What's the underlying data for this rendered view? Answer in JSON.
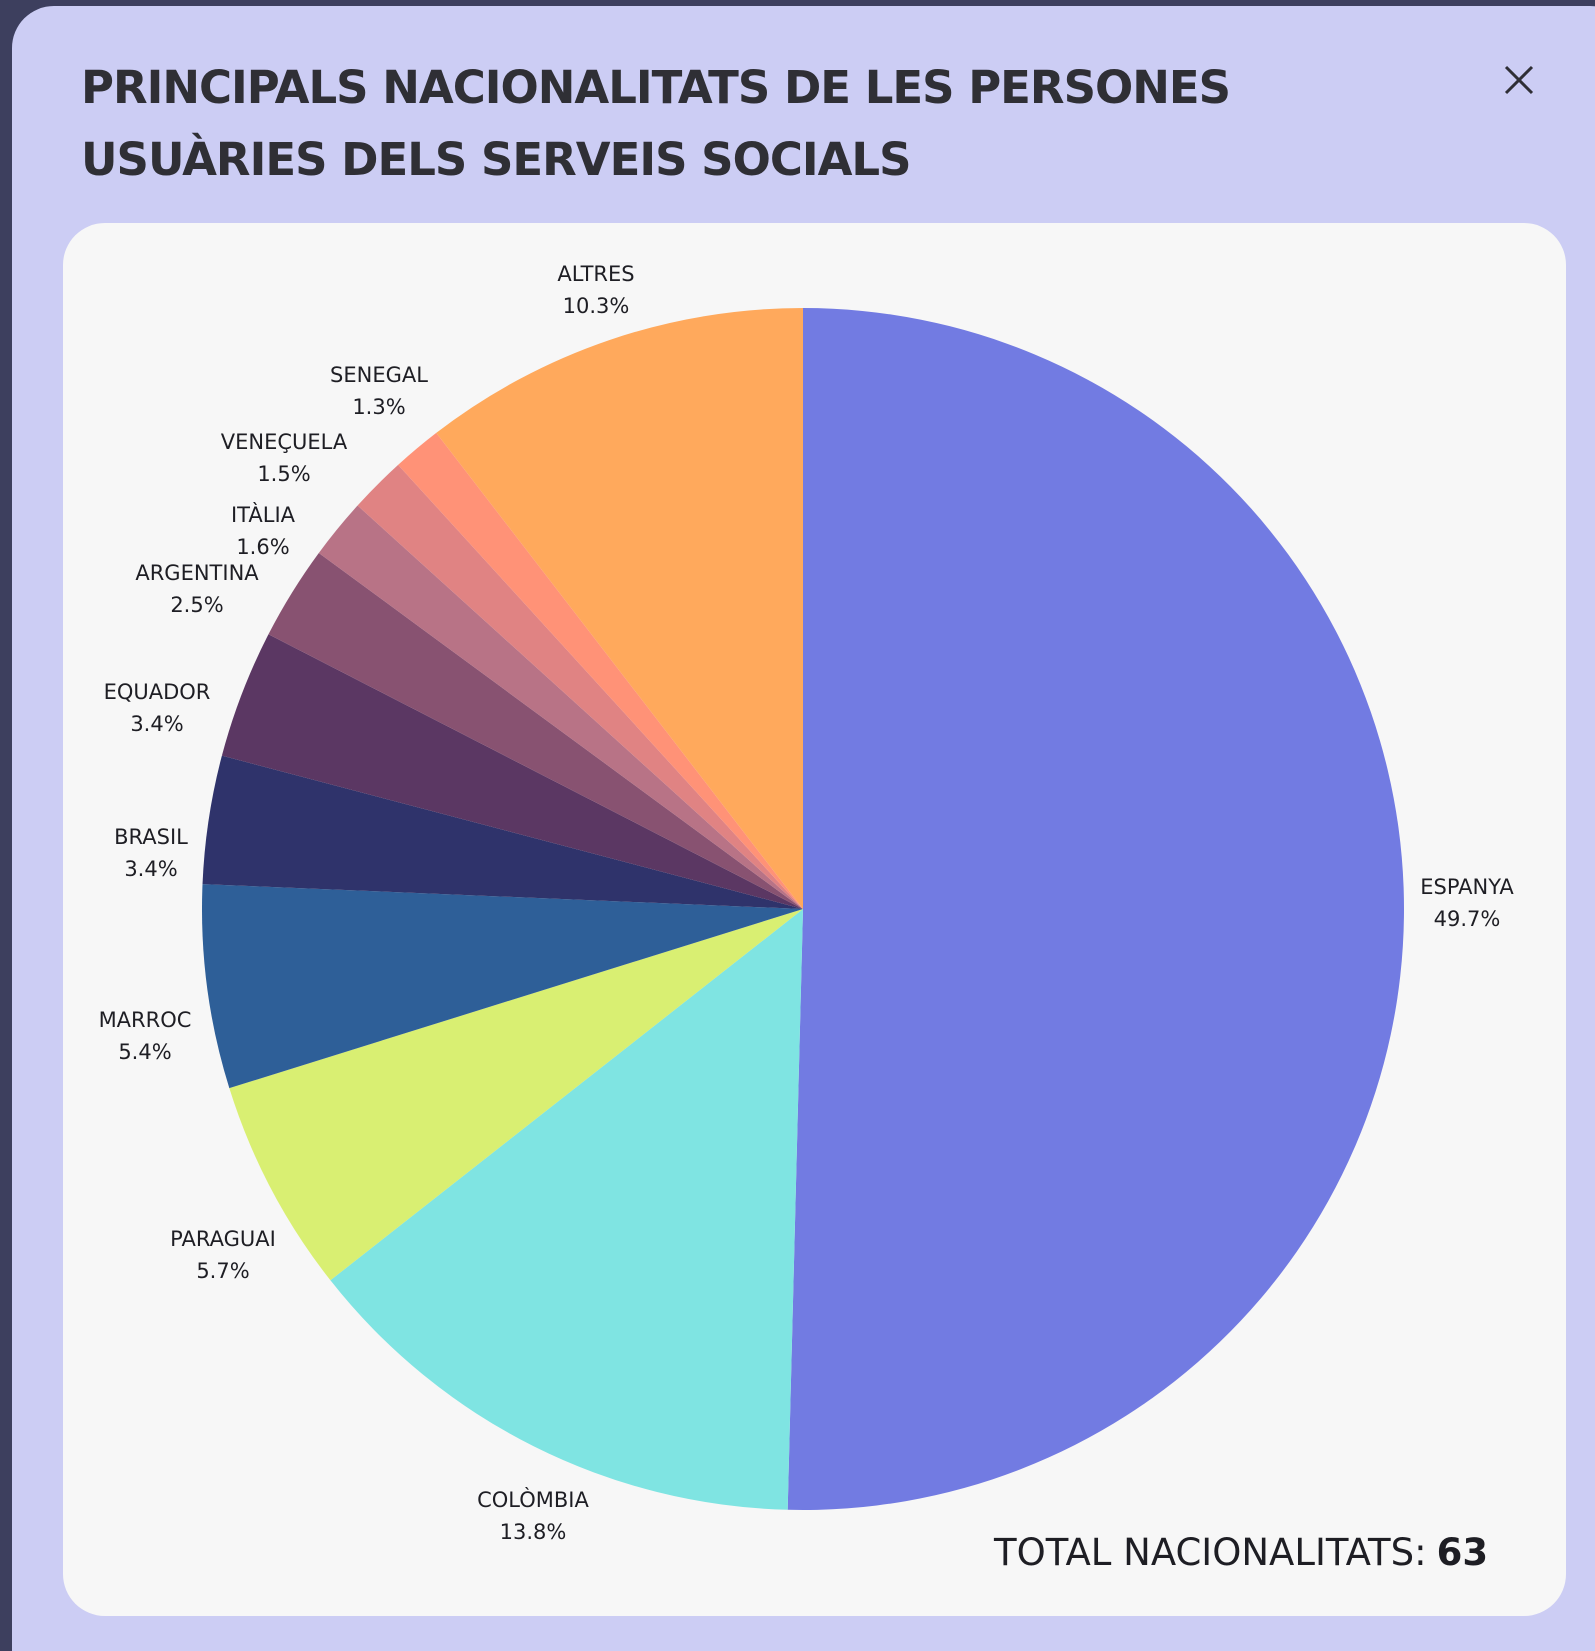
{
  "chart_data": {
    "type": "pie",
    "title": "PRINCIPALS NACIONALITATS DE LES PERSONES USUÀRIES DELS SERVEIS SOCIALS",
    "categories": [
      "ESPANYA",
      "COLÒMBIA",
      "PARAGUAI",
      "MARROC",
      "BRASIL",
      "EQUADOR",
      "ARGENTINA",
      "ITÀLIA",
      "VENEÇUELA",
      "SENEGAL",
      "ALTRES"
    ],
    "values": [
      49.7,
      13.8,
      5.7,
      5.4,
      3.4,
      3.4,
      2.5,
      1.6,
      1.5,
      1.3,
      10.3
    ],
    "value_labels": [
      "49.7%",
      "13.8%",
      "5.7%",
      "5.4%",
      "3.4%",
      "3.4%",
      "2.5%",
      "1.6%",
      "1.5%",
      "1.3%",
      "10.3%"
    ],
    "colors": [
      "#727be2",
      "#7fe4e2",
      "#d9ef72",
      "#2e5f98",
      "#2f336b",
      "#5b3763",
      "#885271",
      "#b87386",
      "#e08383",
      "#ff9277",
      "#ffa95c",
      "#ffcf4f"
    ],
    "total_label": "TOTAL NACIONALITATS:",
    "total": 63
  }
}
